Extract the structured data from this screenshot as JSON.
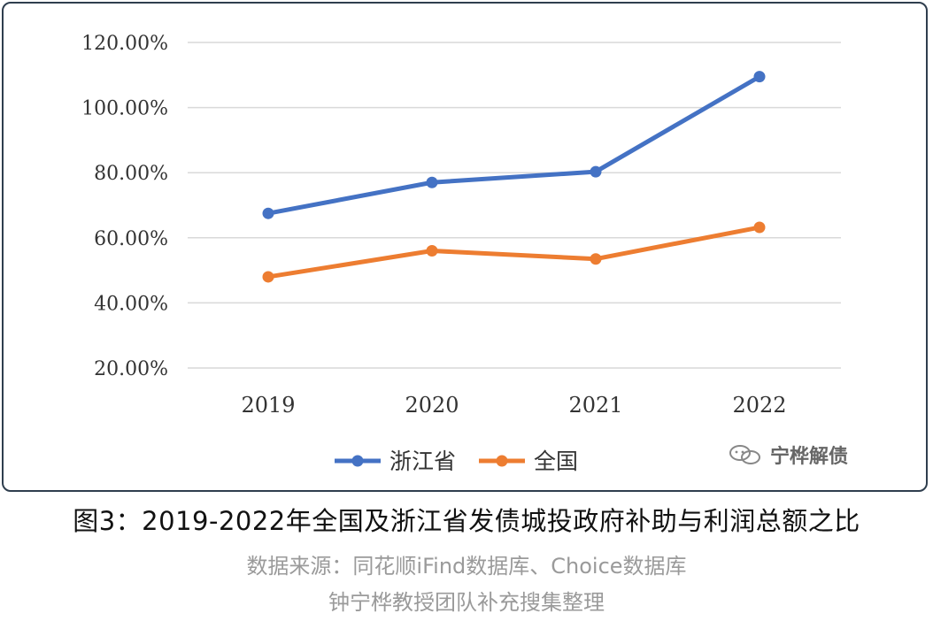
{
  "chart_data": {
    "type": "line",
    "categories": [
      "2019",
      "2020",
      "2021",
      "2022"
    ],
    "series": [
      {
        "name": "浙江省",
        "values": [
          67.5,
          77.0,
          80.3,
          109.5
        ],
        "color": "#4472c4"
      },
      {
        "name": "全国",
        "values": [
          48.0,
          56.0,
          53.5,
          63.2
        ],
        "color": "#ed7d31"
      }
    ],
    "yticks": [
      "20.00%",
      "40.00%",
      "60.00%",
      "80.00%",
      "100.00%",
      "120.00%"
    ],
    "ylim": [
      20,
      120
    ],
    "grid": true,
    "legend_position": "bottom"
  },
  "watermark": {
    "text": "宁桦解债",
    "icon": "wechat-icon"
  },
  "caption": {
    "title": "图3：2019-2022年全国及浙江省发债城投政府补助与利润总额之比",
    "source": "数据来源：同花顺iFind数据库、Choice数据库",
    "credit": "钟宁桦教授团队补充搜集整理"
  }
}
